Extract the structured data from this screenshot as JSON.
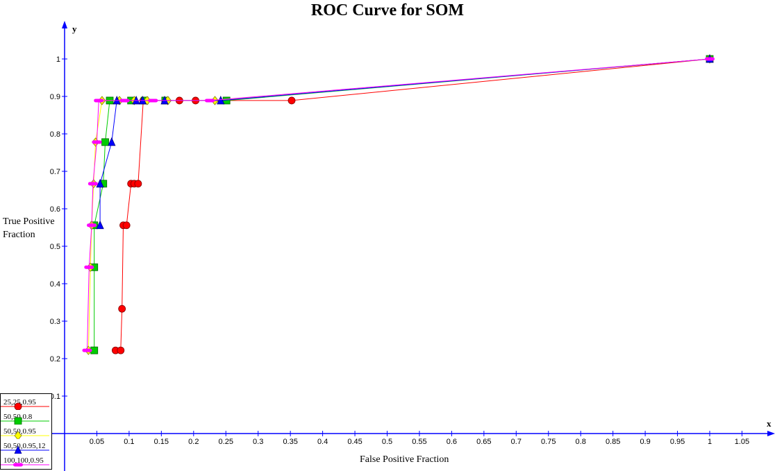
{
  "chart_data": {
    "type": "line",
    "title": "ROC Curve for SOM",
    "xlabel": "False Positive Fraction",
    "ylabel": "True Positive Fraction",
    "x_axis_letter": "x",
    "y_axis_letter": "y",
    "xlim": [
      0,
      1.05
    ],
    "ylim": [
      0,
      1
    ],
    "x_ticks": [
      "0.05",
      "0.1",
      "0.15",
      "0.2",
      "0.25",
      "0.3",
      "0.35",
      "0.4",
      "0.45",
      "0.5",
      "0.55",
      "0.6",
      "0.65",
      "0.7",
      "0.75",
      "0.8",
      "0.85",
      "0.9",
      "0.95",
      "1",
      "1.05"
    ],
    "y_ticks": [
      "0.1",
      "0.2",
      "0.3",
      "0.4",
      "0.5",
      "0.6",
      "0.7",
      "0.8",
      "0.9",
      "1"
    ],
    "grid": false,
    "legend_position": "bottom-left",
    "series": [
      {
        "name": "25,25,0.95",
        "color": "#ff0000",
        "marker": "circle",
        "points": [
          [
            0.079,
            0.222
          ],
          [
            0.087,
            0.222
          ],
          [
            0.089,
            0.333
          ],
          [
            0.091,
            0.556
          ],
          [
            0.096,
            0.556
          ],
          [
            0.103,
            0.667
          ],
          [
            0.108,
            0.667
          ],
          [
            0.114,
            0.667
          ],
          [
            0.122,
            0.889
          ],
          [
            0.178,
            0.889
          ],
          [
            0.203,
            0.889
          ],
          [
            0.352,
            0.889
          ],
          [
            1,
            1
          ]
        ]
      },
      {
        "name": "50,50,0.8",
        "color": "#00cc00",
        "marker": "square",
        "points": [
          [
            0.046,
            0.222
          ],
          [
            0.046,
            0.444
          ],
          [
            0.046,
            0.556
          ],
          [
            0.06,
            0.667
          ],
          [
            0.063,
            0.778
          ],
          [
            0.07,
            0.889
          ],
          [
            0.103,
            0.889
          ],
          [
            0.124,
            0.889
          ],
          [
            0.156,
            0.889
          ],
          [
            0.251,
            0.889
          ],
          [
            1,
            1
          ]
        ]
      },
      {
        "name": "50,50,0.95",
        "color": "#ffff00",
        "marker": "diamond",
        "points": [
          [
            0.037,
            0.222
          ],
          [
            0.04,
            0.444
          ],
          [
            0.042,
            0.556
          ],
          [
            0.045,
            0.667
          ],
          [
            0.048,
            0.778
          ],
          [
            0.058,
            0.889
          ],
          [
            0.085,
            0.889
          ],
          [
            0.108,
            0.889
          ],
          [
            0.128,
            0.889
          ],
          [
            0.16,
            0.889
          ],
          [
            0.233,
            0.889
          ],
          [
            1,
            1
          ]
        ]
      },
      {
        "name": "50,50,0.95,12",
        "color": "#0000ff",
        "marker": "triangle",
        "points": [
          [
            0.055,
            0.556
          ],
          [
            0.055,
            0.667
          ],
          [
            0.073,
            0.778
          ],
          [
            0.081,
            0.889
          ],
          [
            0.111,
            0.889
          ],
          [
            0.121,
            0.889
          ],
          [
            0.155,
            0.889
          ],
          [
            0.242,
            0.889
          ],
          [
            1,
            1
          ]
        ]
      },
      {
        "name": "100,100,0.95",
        "color": "#ff00ff",
        "marker": "dash",
        "points": [
          [
            0.035,
            0.222
          ],
          [
            0.038,
            0.444
          ],
          [
            0.042,
            0.556
          ],
          [
            0.044,
            0.667
          ],
          [
            0.05,
            0.778
          ],
          [
            0.053,
            0.889
          ],
          [
            0.093,
            0.889
          ],
          [
            0.137,
            0.889
          ],
          [
            0.225,
            0.889
          ],
          [
            1,
            1
          ]
        ]
      }
    ]
  }
}
